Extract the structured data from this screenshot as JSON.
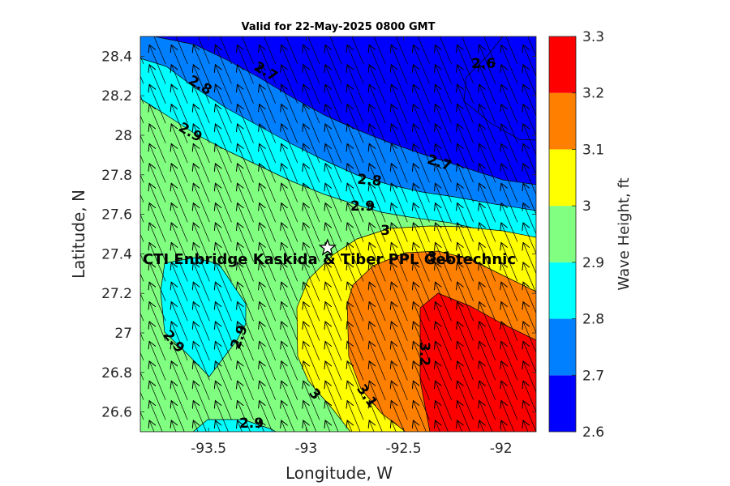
{
  "chart_data": {
    "type": "contour",
    "title": "Valid for 22-May-2025 0800 GMT",
    "xlabel": "Longitude, W",
    "ylabel": "Latitude, N",
    "xlim": [
      -93.85,
      -91.82
    ],
    "ylim": [
      26.5,
      28.5
    ],
    "xticks": [
      -93.5,
      -93,
      -92.5,
      -92
    ],
    "xtick_labels": [
      "-93.5",
      "-93",
      "-92.5",
      "-92"
    ],
    "yticks": [
      26.6,
      26.8,
      27,
      27.2,
      27.4,
      27.6,
      27.8,
      28,
      28.2,
      28.4
    ],
    "ytick_labels": [
      "26.6",
      "26.8",
      "27",
      "27.2",
      "27.4",
      "27.6",
      "27.8",
      "28",
      "28.2",
      "28.4"
    ],
    "colorbar": {
      "label": "Wave Height, ft",
      "levels": [
        2.6,
        2.7,
        2.8,
        2.9,
        3.0,
        3.1,
        3.2,
        3.3
      ],
      "tick_labels": [
        "2.6",
        "2.7",
        "2.8",
        "2.9",
        "3",
        "3.1",
        "3.2",
        "3.3"
      ],
      "colors": [
        "#0000ff",
        "#0080ff",
        "#00ffff",
        "#80ff80",
        "#ffff00",
        "#ff8000",
        "#ff0000"
      ]
    },
    "contour_labels": [
      {
        "text": "2.6",
        "lon": -92.1,
        "lat": 28.38
      },
      {
        "text": "2.7",
        "lon": -93.03,
        "lat": 28.34
      },
      {
        "text": "2.7",
        "lon": -92.38,
        "lat": 27.86
      },
      {
        "text": "2.8",
        "lon": -93.55,
        "lat": 28.26
      },
      {
        "text": "2.8",
        "lon": -92.8,
        "lat": 27.81
      },
      {
        "text": "2.9",
        "lon": -93.6,
        "lat": 28.03
      },
      {
        "text": "2.9",
        "lon": -92.83,
        "lat": 27.65
      },
      {
        "text": "2.9",
        "lon": -93.65,
        "lat": 26.97
      },
      {
        "text": "2.9",
        "lon": -93.3,
        "lat": 27.0
      },
      {
        "text": "2.9",
        "lon": -93.26,
        "lat": 26.55
      },
      {
        "text": "3",
        "lon": -92.65,
        "lat": 27.51
      },
      {
        "text": "3",
        "lon": -93.0,
        "lat": 26.75
      },
      {
        "text": "3.1",
        "lon": -92.75,
        "lat": 26.72
      },
      {
        "text": "3.2",
        "lon": -92.5,
        "lat": 26.96
      }
    ],
    "site": {
      "name": "CTI Enbridge  Kaskida & Tiber PPL Geotechnic",
      "lon": -92.89,
      "lat": 27.43,
      "marker": "star"
    },
    "overlap_label": {
      "text": "3.1",
      "lon": -92.38,
      "lat": 27.38
    },
    "wave_direction": "arrows pointing toward north-northwest across entire grid"
  }
}
